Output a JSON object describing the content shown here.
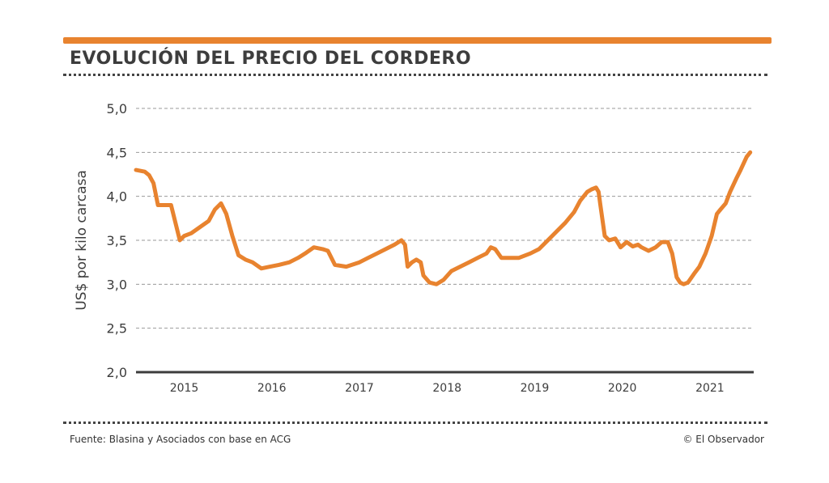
{
  "header": {
    "title": "EVOLUCIÓN DEL PRECIO DEL CORDERO"
  },
  "footer": {
    "source": "Fuente: Blasina y Asociados con base en ACG",
    "credit": "© El Observador"
  },
  "colors": {
    "accent": "#e8832f",
    "text": "#3d3d3d",
    "grid": "#9a9a9a"
  },
  "chart_data": {
    "type": "line",
    "title": "",
    "xlabel": "",
    "ylabel": "US$ por kilo carcasa",
    "ylim": [
      2.0,
      5.0
    ],
    "xlim": [
      2014.45,
      2021.5
    ],
    "y_ticks": [
      "5,0",
      "4,5",
      "4,0",
      "3,5",
      "3,0",
      "2,5",
      "2,0"
    ],
    "y_tick_values": [
      5.0,
      4.5,
      4.0,
      3.5,
      3.0,
      2.5,
      2.0
    ],
    "x_ticks": [
      "2015",
      "2016",
      "2017",
      "2018",
      "2019",
      "2020",
      "2021"
    ],
    "x_tick_values": [
      2015,
      2016,
      2017,
      2018,
      2019,
      2020,
      2021
    ],
    "grid": "horizontal dashed",
    "series": [
      {
        "name": "",
        "x": [
          2014.45,
          2014.55,
          2014.6,
          2014.65,
          2014.7,
          2014.75,
          2014.85,
          2014.95,
          2015.0,
          2015.08,
          2015.18,
          2015.28,
          2015.35,
          2015.42,
          2015.48,
          2015.55,
          2015.62,
          2015.7,
          2015.78,
          2015.88,
          2015.98,
          2016.08,
          2016.2,
          2016.3,
          2016.38,
          2016.48,
          2016.58,
          2016.64,
          2016.72,
          2016.85,
          2017.0,
          2017.1,
          2017.2,
          2017.3,
          2017.4,
          2017.48,
          2017.52,
          2017.55,
          2017.6,
          2017.65,
          2017.7,
          2017.73,
          2017.8,
          2017.88,
          2017.96,
          2018.05,
          2018.15,
          2018.25,
          2018.35,
          2018.45,
          2018.5,
          2018.55,
          2018.62,
          2018.7,
          2018.82,
          2018.95,
          2019.05,
          2019.15,
          2019.25,
          2019.35,
          2019.45,
          2019.52,
          2019.6,
          2019.65,
          2019.7,
          2019.73,
          2019.75,
          2019.8,
          2019.85,
          2019.92,
          2019.98,
          2020.05,
          2020.12,
          2020.18,
          2020.22,
          2020.3,
          2020.38,
          2020.45,
          2020.52,
          2020.57,
          2020.62,
          2020.66,
          2020.7,
          2020.75,
          2020.82,
          2020.88,
          2020.95,
          2021.02,
          2021.08,
          2021.12,
          2021.18,
          2021.23,
          2021.3,
          2021.35,
          2021.42,
          2021.46
        ],
        "values": [
          4.3,
          4.28,
          4.24,
          4.15,
          3.9,
          3.9,
          3.9,
          3.5,
          3.55,
          3.58,
          3.65,
          3.72,
          3.85,
          3.92,
          3.8,
          3.55,
          3.33,
          3.28,
          3.25,
          3.18,
          3.2,
          3.22,
          3.25,
          3.3,
          3.35,
          3.42,
          3.4,
          3.38,
          3.22,
          3.2,
          3.25,
          3.3,
          3.35,
          3.4,
          3.45,
          3.5,
          3.45,
          3.2,
          3.25,
          3.28,
          3.25,
          3.1,
          3.02,
          3.0,
          3.05,
          3.15,
          3.2,
          3.25,
          3.3,
          3.35,
          3.42,
          3.4,
          3.3,
          3.3,
          3.3,
          3.35,
          3.4,
          3.5,
          3.6,
          3.7,
          3.82,
          3.95,
          4.05,
          4.08,
          4.1,
          4.05,
          3.9,
          3.55,
          3.5,
          3.52,
          3.42,
          3.48,
          3.43,
          3.45,
          3.42,
          3.38,
          3.42,
          3.48,
          3.48,
          3.35,
          3.08,
          3.02,
          3.0,
          3.02,
          3.12,
          3.2,
          3.35,
          3.55,
          3.8,
          3.85,
          3.92,
          4.05,
          4.2,
          4.3,
          4.45,
          4.5
        ]
      }
    ]
  }
}
